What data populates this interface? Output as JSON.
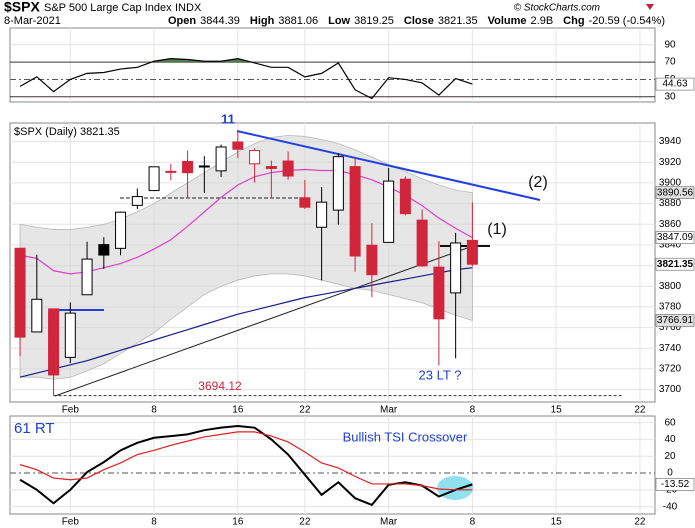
{
  "header": {
    "symbol": "$SPX",
    "name": "S&P 500 Large Cap Index",
    "exchange": "INDX",
    "date": "8-Mar-2021",
    "quote": [
      [
        "Open",
        "3844.39"
      ],
      [
        "High",
        "3881.06"
      ],
      [
        "Low",
        "3819.25"
      ],
      [
        "Close",
        "3821.35"
      ],
      [
        "Volume",
        "2.9B"
      ],
      [
        "Chg",
        "-20.59 (-0.54%)"
      ]
    ],
    "credit": "© StockCharts.com"
  },
  "chart_data": [
    {
      "type": "line",
      "xlim": [
        -0.6,
        37.9
      ],
      "ylim": [
        24,
        109.3
      ],
      "yticks": [
        30,
        50,
        70,
        90
      ],
      "grid": true,
      "color": "#000000",
      "overbought": 70,
      "oversold": 30,
      "overbought_color": "#4f7f4f",
      "oversold_color": "#d0253a",
      "values": [
        42,
        53,
        36,
        50,
        57,
        58,
        62,
        64,
        71,
        74,
        73,
        71,
        71,
        74,
        69,
        64,
        64,
        53,
        57,
        69,
        38,
        28,
        52,
        50,
        46,
        32,
        51,
        44.63
      ],
      "end_labels": [
        {
          "value": 44.63,
          "color": "#ffffff"
        }
      ]
    },
    {
      "type": "candlestick",
      "legend": "$SPX (Daily) 3821.35",
      "xlim": [
        -0.6,
        37.9
      ],
      "ylim": [
        3688,
        3958
      ],
      "yticks": [
        3700,
        3720,
        3740,
        3760,
        3780,
        3800,
        3820,
        3840,
        3860,
        3880,
        3900,
        3920,
        3940
      ],
      "grid": true,
      "xticks": [
        {
          "value": 3,
          "label": "Feb"
        },
        {
          "value": 8,
          "label": "8"
        },
        {
          "value": 13,
          "label": "16"
        },
        {
          "value": 17,
          "label": "22"
        },
        {
          "value": 22,
          "label": "Mar"
        },
        {
          "value": 27,
          "label": "8"
        },
        {
          "value": 32,
          "label": "15"
        },
        {
          "value": 37,
          "label": "22"
        }
      ],
      "up_color": "#000000",
      "down_color": "#d0253a",
      "open": [
        3836.8,
        3755.8,
        3778.1,
        3731.2,
        3791.8,
        3840.3,
        3836.7,
        3878.3,
        3892.6,
        3910.5,
        3920.8,
        3916.4,
        3911.7,
        3939.6,
        3918.5,
        3915.9,
        3921.2,
        3885.6,
        3857.1,
        3873.7,
        3915.8,
        3839.7,
        3842.5,
        3903.6,
        3864.0,
        3818.5,
        3793.6,
        3844.39
      ],
      "high": [
        3836.8,
        3830.5,
        3778.1,
        3784.3,
        3843.1,
        3847.5,
        3872.4,
        3894.6,
        3915.8,
        3918.4,
        3931.5,
        3925.9,
        3937.2,
        3950.4,
        3933.6,
        3921.6,
        3930.4,
        3902.9,
        3896.0,
        3928.7,
        3925.0,
        3861.1,
        3914.5,
        3906.4,
        3874.5,
        3843.7,
        3851.7,
        3881.06
      ],
      "low": [
        3732.5,
        3755.8,
        3694.1,
        3725.6,
        3791.8,
        3816.7,
        3830.0,
        3874.9,
        3892.6,
        3902.6,
        3884.9,
        3890.4,
        3905.8,
        3923.9,
        3900.4,
        3885.0,
        3903.1,
        3874.7,
        3805.6,
        3859.6,
        3814.0,
        3789.5,
        3842.5,
        3868.6,
        3818.9,
        3723.3,
        3730.2,
        3819.25
      ],
      "close": [
        3750.8,
        3787.4,
        3714.2,
        3774.0,
        3826.3,
        3830.2,
        3871.7,
        3886.8,
        3915.6,
        3911.2,
        3909.9,
        3916.4,
        3934.8,
        3932.6,
        3931.3,
        3914.0,
        3906.7,
        3876.5,
        3881.4,
        3925.4,
        3829.3,
        3811.2,
        3901.8,
        3870.3,
        3819.7,
        3768.5,
        3841.9,
        3821.35
      ],
      "band": {
        "color": "#d6d6d6",
        "upper": [
          3860,
          3857,
          3855,
          3855,
          3857,
          3860,
          3865,
          3872,
          3880,
          3890,
          3900,
          3910,
          3920,
          3930,
          3938,
          3944,
          3946,
          3945,
          3942,
          3938,
          3932,
          3925,
          3918,
          3911,
          3904,
          3898,
          3893,
          3890.56
        ],
        "lower": [
          3712,
          3712,
          3710,
          3712,
          3718,
          3725,
          3735,
          3745,
          3755,
          3768,
          3780,
          3792,
          3800,
          3806,
          3810,
          3812,
          3812,
          3810,
          3806,
          3802,
          3798,
          3796,
          3792,
          3788,
          3784,
          3778,
          3772,
          3766.91
        ]
      },
      "lines": [
        {
          "color": "#e040c8",
          "values": [
            3830,
            3827,
            3815,
            3812,
            3814,
            3818,
            3822,
            3828,
            3836,
            3845,
            3858,
            3872,
            3886,
            3898,
            3906,
            3910,
            3912,
            3913,
            3912,
            3912,
            3908,
            3903,
            3896,
            3888,
            3878,
            3866,
            3856,
            3847.09
          ]
        },
        {
          "color": "#1a1a8c",
          "values": [
            3712,
            3716,
            3720,
            3724,
            3728,
            3733,
            3738,
            3743,
            3748,
            3753,
            3758,
            3763,
            3768,
            3773,
            3777,
            3781,
            3785,
            3789,
            3792,
            3795,
            3798,
            3801,
            3804,
            3807,
            3810,
            3813,
            3816,
            3818
          ]
        }
      ],
      "end_labels": [
        {
          "value": 3890.56,
          "color": "#e0e0e0"
        },
        {
          "value": 3847.09,
          "color": "#ffffff"
        },
        {
          "value": 3821.35,
          "color": "#ffffff"
        },
        {
          "value": 3766.91,
          "color": "#e0e0e0"
        }
      ],
      "low_line": 3694.12,
      "annotations": [
        "11",
        "(2)",
        "(1)",
        "23 LT ?"
      ]
    },
    {
      "type": "line",
      "xlim": [
        -0.6,
        37.9
      ],
      "ylim": [
        -48.8,
        67.9
      ],
      "yticks": [
        -40,
        -20,
        0,
        20,
        40,
        60
      ],
      "grid": true,
      "xticks": [
        {
          "value": 3,
          "label": "Feb"
        },
        {
          "value": 8,
          "label": "8"
        },
        {
          "value": 13,
          "label": "16"
        },
        {
          "value": 17,
          "label": "22"
        },
        {
          "value": 22,
          "label": "Mar"
        },
        {
          "value": 27,
          "label": "8"
        },
        {
          "value": 32,
          "label": "15"
        },
        {
          "value": 37,
          "label": "22"
        }
      ],
      "series": [
        {
          "color": "#000000",
          "values": [
            -8,
            -20,
            -36,
            -20,
            1,
            13,
            27,
            36,
            42,
            44,
            46,
            51,
            54,
            56,
            54,
            40,
            22,
            -2,
            -26,
            -11,
            -30,
            -38,
            -14,
            -11,
            -15,
            -28,
            -20,
            -13.52
          ]
        },
        {
          "color": "#e02020",
          "values": [
            10,
            4,
            -6,
            -8,
            -6,
            4,
            12,
            22,
            27,
            33,
            38,
            43,
            46,
            49,
            49,
            44,
            37,
            25,
            12,
            6,
            -4,
            -13,
            -13,
            -13,
            -15,
            -19,
            -20,
            -20
          ]
        }
      ],
      "end_labels": [
        {
          "value": -13.52,
          "color": "#ffffff"
        }
      ],
      "annotations": [
        "61 RT",
        "Bullish TSI Crossover"
      ]
    }
  ]
}
